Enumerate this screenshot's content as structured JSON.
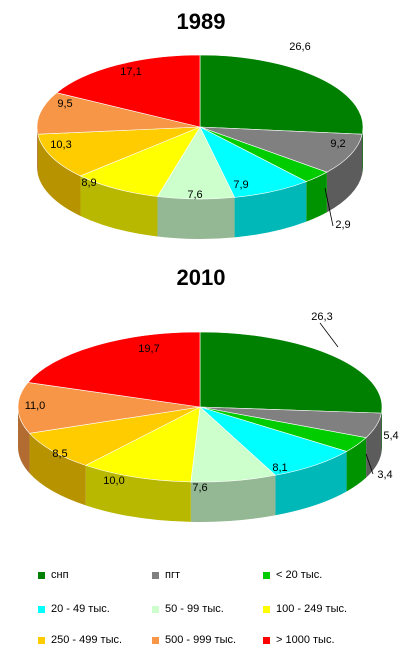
{
  "categories": [
    "снп",
    "пгт",
    "< 20 тыс.",
    "20 - 49 тыс.",
    "50 - 99 тыс.",
    "100 - 249 тыс.",
    "250 - 499 тыс.",
    "500 - 999 тыс.",
    "> 1000 тыс."
  ],
  "colors": [
    "#008000",
    "#808080",
    "#00cc00",
    "#00ffff",
    "#ccffcc",
    "#ffff00",
    "#ffcc00",
    "#f79646",
    "#ff0000"
  ],
  "chart_data": [
    {
      "type": "pie",
      "title": "1989",
      "categories": [
        "снп",
        "пгт",
        "< 20 тыс.",
        "20 - 49 тыс.",
        "50 - 99 тыс.",
        "100 - 249 тыс.",
        "250 - 499 тыс.",
        "500 - 999 тыс.",
        "> 1000 тыс."
      ],
      "values": [
        26.6,
        9.2,
        2.9,
        7.9,
        7.6,
        8.9,
        10.3,
        9.5,
        17.1
      ],
      "value_labels": [
        "26,6",
        "9,2",
        "2,9",
        "7,9",
        "7,6",
        "8,9",
        "10,3",
        "9,5",
        "17,1"
      ]
    },
    {
      "type": "pie",
      "title": "2010",
      "categories": [
        "снп",
        "пгт",
        "< 20 тыс.",
        "20 - 49 тыс.",
        "50 - 99 тыс.",
        "100 - 249 тыс.",
        "250 - 499 тыс.",
        "500 - 999 тыс.",
        "> 1000 тыс."
      ],
      "values": [
        26.3,
        5.4,
        3.4,
        8.1,
        7.6,
        10.0,
        8.5,
        11.0,
        19.7
      ],
      "value_labels": [
        "26,3",
        "5,4",
        "3,4",
        "8,1",
        "7,6",
        "10,0",
        "8,5",
        "11,0",
        "19,7"
      ]
    }
  ]
}
